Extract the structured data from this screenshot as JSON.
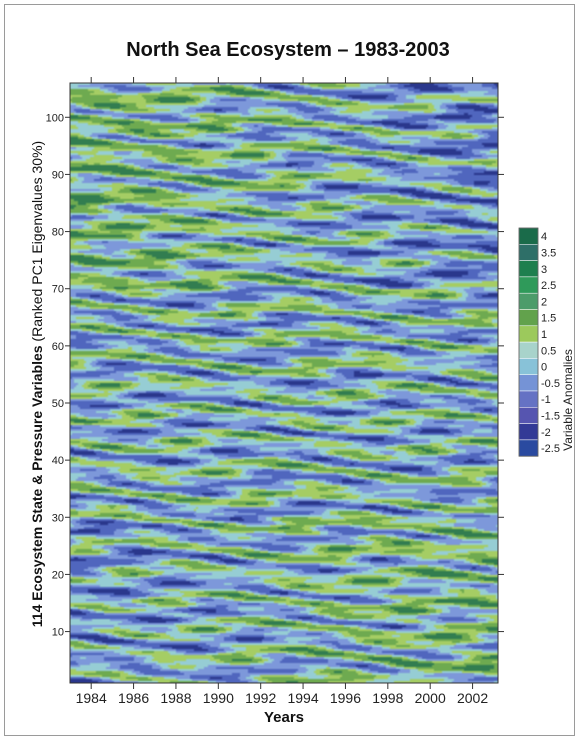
{
  "chart_data": {
    "type": "heatmap",
    "title": "North Sea Ecosystem – 1983-2003",
    "xlabel": "Years",
    "ylabel_bold": "114 Ecosystem State & Pressure Variables",
    "ylabel_normal": " (Ranked PC1 Eigenvalues 30%)",
    "colorbar_label": "Variable Anomalies",
    "xlim": [
      1983,
      2003.2
    ],
    "ylim": [
      1,
      106
    ],
    "x_ticks": [
      1984,
      1986,
      1988,
      1990,
      1992,
      1994,
      1996,
      1998,
      2000,
      2002
    ],
    "y_ticks": [
      10,
      20,
      30,
      40,
      50,
      60,
      70,
      80,
      90,
      100
    ],
    "legend": {
      "levels": [
        "4",
        "3.5",
        "3",
        "2.5",
        "2",
        "1.5",
        "1",
        "0.5",
        "0",
        "-0.5",
        "-1",
        "-1.5",
        "-2",
        "-2.5"
      ],
      "colors": [
        "#1a6b4a",
        "#2e6f68",
        "#1e7f4e",
        "#2f9a5a",
        "#4c9c6a",
        "#62a24c",
        "#9cc95c",
        "#a8d3cb",
        "#88c2d8",
        "#7593d6",
        "#6572c4",
        "#5655b0",
        "#333a96",
        "#2a4aa0"
      ]
    }
  }
}
